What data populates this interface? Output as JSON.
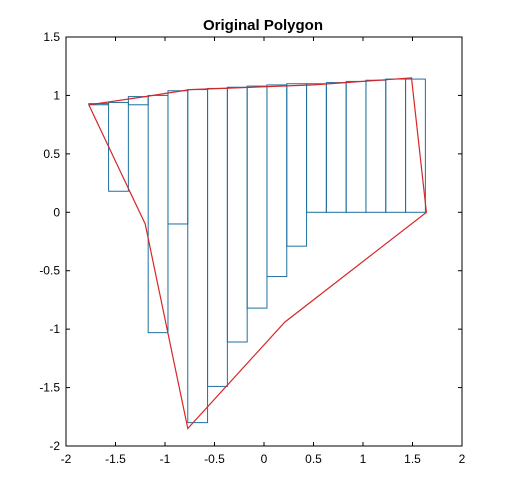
{
  "chart_data": {
    "type": "line",
    "title": "Original Polygon",
    "xlabel": "",
    "ylabel": "",
    "xlim": [
      -2,
      2
    ],
    "ylim": [
      -2,
      1.5
    ],
    "grid": false,
    "x_ticks": [
      "-2",
      "-1.5",
      "-1",
      "-0.5",
      "0",
      "0.5",
      "1",
      "1.5",
      "2"
    ],
    "y_ticks": [
      "-2",
      "-1.5",
      "-1",
      "-0.5",
      "0",
      "0.5",
      "1",
      "1.5"
    ],
    "series": [
      {
        "kind": "polygon",
        "color": "#d62728",
        "points": [
          [
            -1.77,
            0.92
          ],
          [
            -1.2,
            0.99
          ],
          [
            -0.75,
            1.05
          ],
          [
            0.5,
            1.09
          ],
          [
            1.49,
            1.15
          ],
          [
            1.64,
            0.0
          ],
          [
            0.21,
            -0.94
          ],
          [
            -0.77,
            -1.85
          ],
          [
            -1.2,
            -0.1
          ],
          [
            -1.77,
            0.92
          ]
        ]
      },
      {
        "kind": "bars",
        "color": "#1f6f9f",
        "edges": [
          -1.77,
          -1.57,
          -1.37,
          -1.17,
          -0.97,
          -0.77,
          -0.57,
          -0.37,
          -0.17,
          0.03,
          0.23,
          0.43,
          0.63,
          0.83,
          1.03,
          1.23,
          1.43,
          1.63
        ],
        "tops": [
          0.93,
          0.94,
          0.99,
          1.0,
          1.04,
          1.05,
          1.06,
          1.07,
          1.08,
          1.09,
          1.1,
          1.1,
          1.11,
          1.12,
          1.13,
          1.14,
          1.14
        ],
        "bottoms": [
          0.92,
          0.18,
          0.92,
          -1.03,
          -0.1,
          -1.8,
          -1.49,
          -1.11,
          -0.82,
          -0.55,
          -0.29,
          0.0,
          0.0,
          0.0,
          0.0,
          0.0,
          0.0
        ]
      }
    ]
  }
}
